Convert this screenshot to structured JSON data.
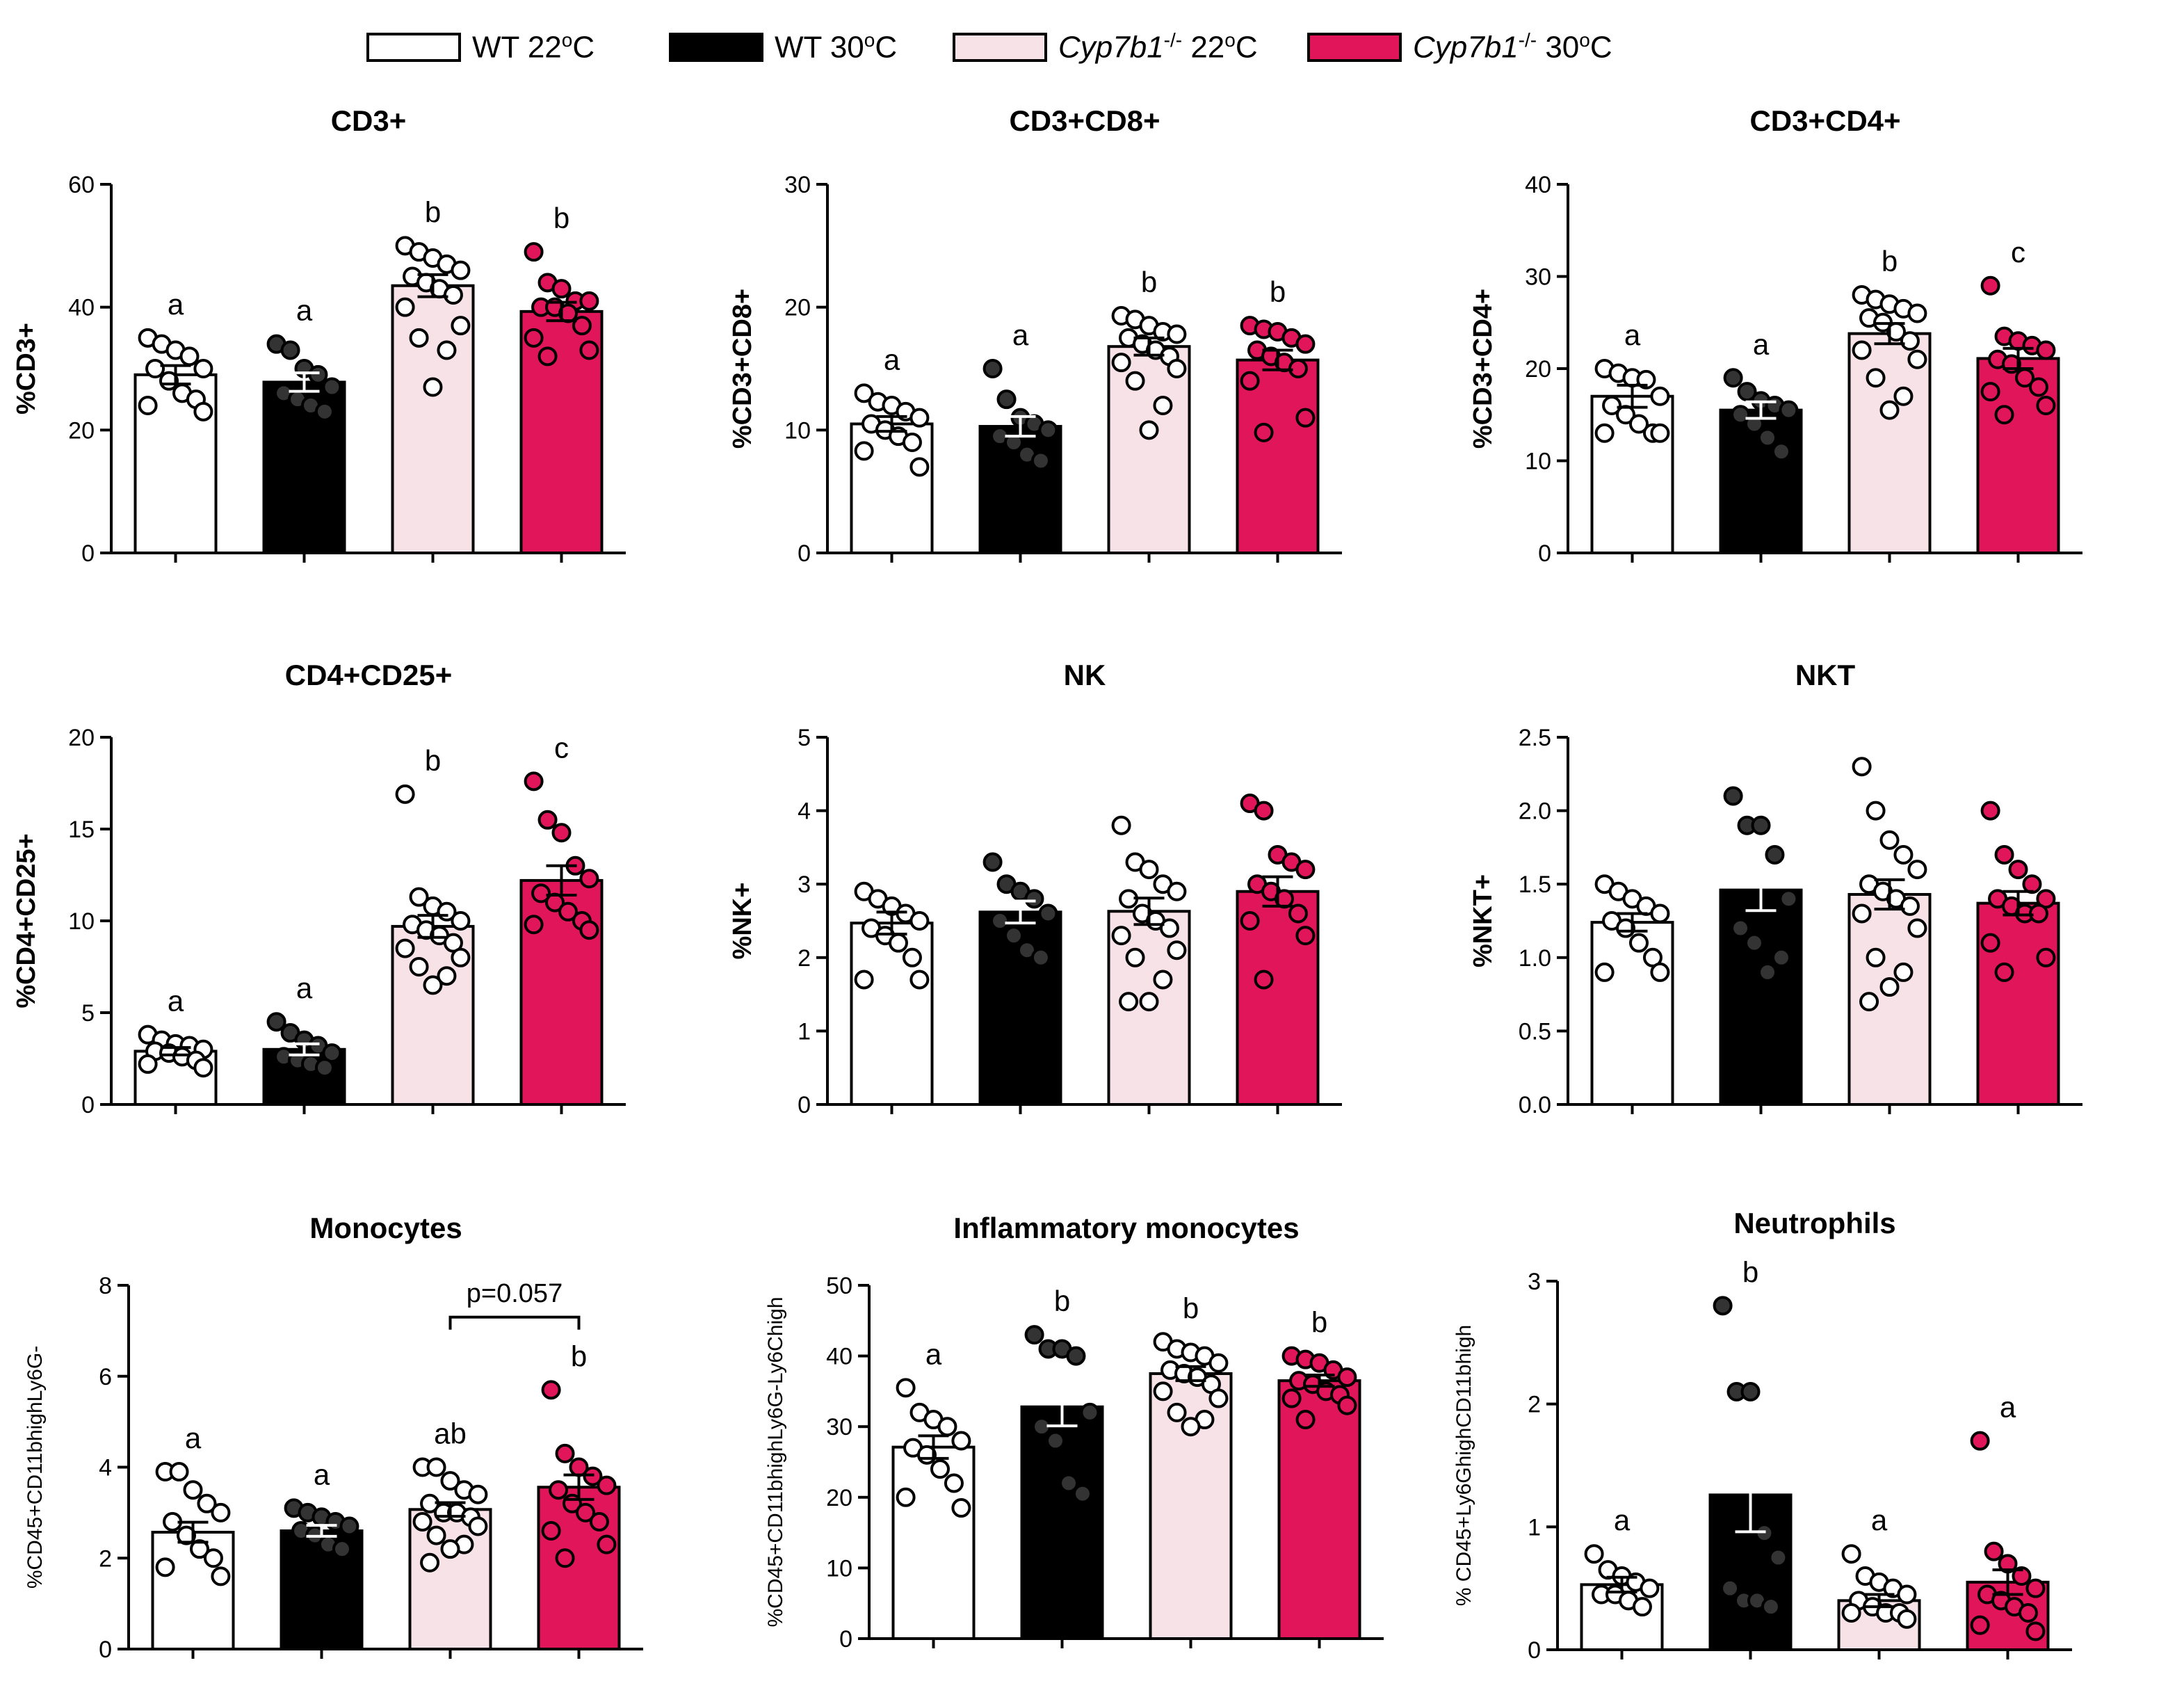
{
  "legend": [
    {
      "label": "WT 22°C",
      "color": "#ffffff"
    },
    {
      "label": "WT 30°C",
      "color": "#000000"
    },
    {
      "label": "Cyp7b1-/- 22°C",
      "color": "#f7e2e8"
    },
    {
      "label": "Cyp7b1-/- 30°C",
      "color": "#e0155a"
    }
  ],
  "colors": {
    "fills": [
      "#ffffff",
      "#000000",
      "#f7e2e8",
      "#e0155a"
    ],
    "dots": [
      "#ffffff",
      "#333333",
      "#ffffff",
      "#e0155a"
    ]
  },
  "chart_data": [
    {
      "type": "bar",
      "title": "CD3+",
      "ylabel": "%CD3+",
      "ylim": [
        0,
        60
      ],
      "yticks": [
        0,
        20,
        40,
        60
      ],
      "categories": [
        "WT 22°C",
        "WT 30°C",
        "Cyp7b1-/- 22°C",
        "Cyp7b1-/- 30°C"
      ],
      "values": [
        29,
        27.8,
        43.5,
        39.3
      ],
      "sem": [
        1.5,
        1.5,
        1.8,
        1.5
      ],
      "letters": [
        "a",
        "a",
        "b",
        "b"
      ],
      "points": [
        [
          35,
          34,
          33,
          32,
          30,
          30,
          28,
          26,
          25,
          24,
          23
        ],
        [
          34,
          33,
          30,
          29,
          27,
          26,
          25,
          24,
          23
        ],
        [
          50,
          49,
          48,
          47,
          46,
          45,
          44,
          43,
          42,
          40,
          37,
          35,
          33,
          27
        ],
        [
          49,
          44,
          43,
          41,
          41,
          40,
          40,
          39,
          37,
          35,
          33,
          32
        ]
      ]
    },
    {
      "type": "bar",
      "title": "CD3+CD8+",
      "ylabel": "%CD3+CD8+",
      "ylim": [
        0,
        30
      ],
      "yticks": [
        0,
        10,
        20,
        30
      ],
      "categories": [
        "WT 22°C",
        "WT 30°C",
        "Cyp7b1-/- 22°C",
        "Cyp7b1-/- 30°C"
      ],
      "values": [
        10.5,
        10.3,
        16.8,
        15.7
      ],
      "sem": [
        0.6,
        0.8,
        0.7,
        0.8
      ],
      "letters": [
        "a",
        "a",
        "b",
        "b"
      ],
      "points": [
        [
          13,
          12.3,
          12,
          11.5,
          11,
          10.5,
          10,
          9.5,
          9,
          8.3,
          7
        ],
        [
          15,
          12.5,
          11,
          10.5,
          10,
          9.5,
          9,
          8,
          7.5
        ],
        [
          19.3,
          19,
          18.5,
          18,
          17.8,
          17.5,
          17,
          16.5,
          16,
          15.5,
          15,
          14,
          12,
          10
        ],
        [
          18.5,
          18.2,
          18,
          17.5,
          17,
          16.5,
          16,
          15.5,
          15,
          14,
          11,
          9.8
        ]
      ]
    },
    {
      "type": "bar",
      "title": "CD3+CD4+",
      "ylabel": "%CD3+CD4+",
      "ylim": [
        0,
        40
      ],
      "yticks": [
        0,
        10,
        20,
        30,
        40
      ],
      "categories": [
        "WT 22°C",
        "WT 30°C",
        "Cyp7b1-/- 22°C",
        "Cyp7b1-/- 30°C"
      ],
      "values": [
        17,
        15.5,
        23.8,
        21.1
      ],
      "sem": [
        1.2,
        0.9,
        1.1,
        1.1
      ],
      "letters": [
        "a",
        "a",
        "b",
        "c"
      ],
      "points": [
        [
          20,
          19.5,
          19,
          18.8,
          17,
          16,
          15,
          14,
          13,
          13,
          13
        ],
        [
          19,
          17.5,
          16.5,
          16,
          15.5,
          15,
          14,
          12.5,
          11
        ],
        [
          28,
          27.5,
          27,
          26.5,
          26,
          25.5,
          25,
          24,
          23,
          22,
          21,
          19,
          17,
          15.5
        ],
        [
          29,
          23.5,
          23,
          22.5,
          22,
          21,
          20.5,
          19,
          18,
          17.5,
          16,
          15
        ]
      ]
    },
    {
      "type": "bar",
      "title": "CD4+CD25+",
      "ylabel": "%CD4+CD25+",
      "ylim": [
        0,
        20
      ],
      "yticks": [
        0,
        5,
        10,
        15,
        20
      ],
      "categories": [
        "WT 22°C",
        "WT 30°C",
        "Cyp7b1-/- 22°C",
        "Cyp7b1-/- 30°C"
      ],
      "values": [
        2.9,
        3.0,
        9.7,
        12.2
      ],
      "sem": [
        0.2,
        0.3,
        0.6,
        0.8
      ],
      "letters": [
        "a",
        "a",
        "b",
        "c"
      ],
      "points": [
        [
          3.8,
          3.5,
          3.3,
          3.2,
          3,
          2.9,
          2.8,
          2.6,
          2.4,
          2.2,
          2
        ],
        [
          4.5,
          3.9,
          3.5,
          3.2,
          2.8,
          2.6,
          2.4,
          2.2,
          2
        ],
        [
          16.9,
          11.3,
          10.8,
          10.5,
          10,
          9.8,
          9.5,
          9.2,
          8.8,
          8.5,
          8,
          7.5,
          7,
          6.5
        ],
        [
          17.6,
          15.5,
          14.8,
          13,
          12.3,
          11.5,
          11,
          10.5,
          10,
          9.8,
          9.5
        ]
      ]
    },
    {
      "type": "bar",
      "title": "NK",
      "ylabel": "%NK+",
      "ylim": [
        0,
        5
      ],
      "yticks": [
        0,
        1,
        2,
        3,
        4,
        5
      ],
      "categories": [
        "WT 22°C",
        "WT 30°C",
        "Cyp7b1-/- 22°C",
        "Cyp7b1-/- 30°C"
      ],
      "values": [
        2.47,
        2.62,
        2.63,
        2.9
      ],
      "sem": [
        0.15,
        0.15,
        0.18,
        0.2
      ],
      "letters": [
        "",
        "",
        "",
        ""
      ],
      "points": [
        [
          2.9,
          2.8,
          2.7,
          2.6,
          2.5,
          2.4,
          2.3,
          2.2,
          2.0,
          1.7,
          1.7
        ],
        [
          3.3,
          3.0,
          2.9,
          2.8,
          2.6,
          2.5,
          2.3,
          2.1,
          2.0
        ],
        [
          3.8,
          3.3,
          3.2,
          3.0,
          2.9,
          2.8,
          2.6,
          2.5,
          2.4,
          2.3,
          2.1,
          2.0,
          1.7,
          1.4,
          1.4
        ],
        [
          4.1,
          4.0,
          3.4,
          3.3,
          3.2,
          3.0,
          2.9,
          2.8,
          2.6,
          2.5,
          2.3,
          1.7
        ]
      ]
    },
    {
      "type": "bar",
      "title": "NKT",
      "ylabel": "%NKT+",
      "ylim": [
        0,
        2.5
      ],
      "yticks": [
        "0.0",
        "0.5",
        "1.0",
        "1.5",
        "2.0",
        "2.5"
      ],
      "categories": [
        "WT 22°C",
        "WT 30°C",
        "Cyp7b1-/- 22°C",
        "Cyp7b1-/- 30°C"
      ],
      "values": [
        1.24,
        1.46,
        1.43,
        1.37
      ],
      "sem": [
        0.06,
        0.14,
        0.1,
        0.08
      ],
      "letters": [
        "",
        "",
        "",
        ""
      ],
      "points": [
        [
          1.5,
          1.45,
          1.4,
          1.35,
          1.3,
          1.25,
          1.2,
          1.1,
          1.0,
          0.9,
          0.9
        ],
        [
          2.1,
          1.9,
          1.9,
          1.7,
          1.4,
          1.2,
          1.1,
          0.9,
          1.0
        ],
        [
          2.3,
          2.0,
          1.8,
          1.7,
          1.6,
          1.5,
          1.45,
          1.4,
          1.35,
          1.3,
          1.2,
          1.0,
          0.9,
          0.8,
          0.7
        ],
        [
          2.0,
          1.7,
          1.6,
          1.5,
          1.4,
          1.4,
          1.35,
          1.3,
          1.3,
          1.1,
          1.0,
          0.9
        ]
      ]
    },
    {
      "type": "bar",
      "title": "Monocytes",
      "ylabel": "%CD45+CD11bhighLy6G-",
      "ylim": [
        0,
        8
      ],
      "yticks": [
        0,
        2,
        4,
        6,
        8
      ],
      "categories": [
        "WT 22°C",
        "WT 30°C",
        "Cyp7b1-/- 22°C",
        "Cyp7b1-/- 30°C"
      ],
      "values": [
        2.57,
        2.6,
        3.07,
        3.56
      ],
      "sem": [
        0.22,
        0.12,
        0.15,
        0.27
      ],
      "letters": [
        "a",
        "a",
        "ab",
        "b"
      ],
      "annotation": "p=0.057",
      "points": [
        [
          3.9,
          3.9,
          3.5,
          3.2,
          3.0,
          2.8,
          2.5,
          2.2,
          2.0,
          1.8,
          1.6
        ],
        [
          3.1,
          3.0,
          2.9,
          2.8,
          2.7,
          2.6,
          2.5,
          2.3,
          2.2
        ],
        [
          4.0,
          4.0,
          3.7,
          3.5,
          3.4,
          3.2,
          3.0,
          3.0,
          2.9,
          2.8,
          2.7,
          2.5,
          2.3,
          2.2,
          1.9
        ],
        [
          5.7,
          4.3,
          4.0,
          3.8,
          3.6,
          3.5,
          3.2,
          3.0,
          2.8,
          2.6,
          2.3,
          2.0
        ]
      ]
    },
    {
      "type": "bar",
      "title": "Inflammatory monocytes",
      "ylabel": "%CD45+CD11bhighLy6G-Ly6Chigh",
      "ylim": [
        0,
        50
      ],
      "yticks": [
        0,
        10,
        20,
        30,
        40,
        50
      ],
      "categories": [
        "WT 22°C",
        "WT 30°C",
        "Cyp7b1-/- 22°C",
        "Cyp7b1-/- 30°C"
      ],
      "values": [
        27.1,
        32.8,
        37.5,
        36.5
      ],
      "sem": [
        1.6,
        2.7,
        1.0,
        0.8
      ],
      "letters": [
        "a",
        "b",
        "b",
        "b"
      ],
      "points": [
        [
          35.5,
          32,
          31,
          30,
          28,
          27,
          26,
          24,
          22,
          20,
          18.5
        ],
        [
          43,
          41,
          41,
          40,
          32,
          30,
          28,
          22,
          20.5
        ],
        [
          42,
          41,
          40.5,
          40,
          39,
          38,
          37.5,
          37,
          36,
          35,
          34,
          32,
          31,
          30
        ],
        [
          40,
          39.5,
          39,
          38,
          37,
          36.5,
          36,
          35,
          34.5,
          34,
          33,
          31
        ]
      ]
    },
    {
      "type": "bar",
      "title": "Neutrophils",
      "ylabel": "% CD45+Ly6GhighCD11bhigh",
      "ylim": [
        0,
        3
      ],
      "yticks": [
        0,
        1,
        2,
        3
      ],
      "categories": [
        "WT 22°C",
        "WT 30°C",
        "Cyp7b1-/- 22°C",
        "Cyp7b1-/- 30°C"
      ],
      "values": [
        0.53,
        1.26,
        0.4,
        0.55
      ],
      "sem": [
        0.06,
        0.3,
        0.05,
        0.1
      ],
      "letters": [
        "a",
        "b",
        "a",
        "a"
      ],
      "points": [
        [
          0.78,
          0.65,
          0.6,
          0.55,
          0.5,
          0.45,
          0.45,
          0.4,
          0.35
        ],
        [
          2.8,
          2.1,
          2.1,
          0.95,
          0.75,
          0.5,
          0.4,
          0.4,
          0.35
        ],
        [
          0.78,
          0.6,
          0.55,
          0.5,
          0.45,
          0.4,
          0.35,
          0.3,
          0.3,
          0.3,
          0.25
        ],
        [
          1.7,
          0.8,
          0.7,
          0.6,
          0.5,
          0.45,
          0.4,
          0.35,
          0.3,
          0.2,
          0.15
        ]
      ]
    }
  ]
}
